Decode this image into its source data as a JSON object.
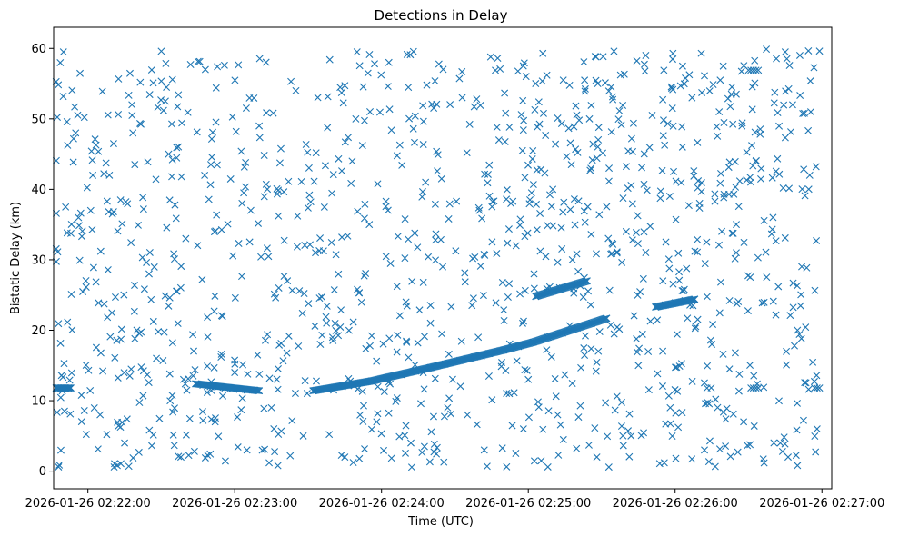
{
  "chart_data": {
    "type": "scatter",
    "title": "Detections in Delay",
    "xlabel": "Time (UTC)",
    "ylabel": "Bistatic Delay (km)",
    "marker": "x",
    "color": "#1f77b4",
    "grid": false,
    "x_tick_labels": [
      "2026-01-26 02:22:00",
      "2026-01-26 02:23:00",
      "2026-01-26 02:24:00",
      "2026-01-26 02:25:00",
      "2026-01-26 02:26:00",
      "2026-01-26 02:27:00"
    ],
    "y_ticks": [
      0,
      10,
      20,
      30,
      40,
      50,
      60
    ],
    "xlim": [
      "2026-01-26 02:21:46",
      "2026-01-26 02:27:04"
    ],
    "ylim": [
      -2.5,
      63
    ],
    "series": [
      {
        "points": [
          [
            "2026-01-26 02:21:47",
            11.8
          ],
          [
            "2026-01-26 02:21:48",
            11.8
          ],
          [
            "2026-01-26 02:21:49",
            11.8
          ],
          [
            "2026-01-26 02:21:50",
            11.8
          ],
          [
            "2026-01-26 02:21:51",
            11.8
          ],
          [
            "2026-01-26 02:21:52",
            11.8
          ],
          [
            "2026-01-26 02:21:53",
            11.8
          ],
          [
            "2026-01-26 02:22:44",
            12.4
          ],
          [
            "2026-01-26 02:22:47",
            12.2
          ],
          [
            "2026-01-26 02:22:50",
            12.0
          ],
          [
            "2026-01-26 02:22:53",
            11.9
          ],
          [
            "2026-01-26 02:22:56",
            11.8
          ],
          [
            "2026-01-26 02:22:59",
            11.7
          ],
          [
            "2026-01-26 02:23:02",
            11.6
          ],
          [
            "2026-01-26 02:23:05",
            11.5
          ],
          [
            "2026-01-26 02:23:08",
            11.5
          ],
          [
            "2026-01-26 02:23:10",
            11.4
          ],
          [
            "2026-01-26 02:23:32",
            11.4
          ],
          [
            "2026-01-26 02:23:38",
            11.7
          ],
          [
            "2026-01-26 02:23:44",
            12.0
          ],
          [
            "2026-01-26 02:23:50",
            12.4
          ],
          [
            "2026-01-26 02:23:56",
            12.8
          ],
          [
            "2026-01-26 02:24:02",
            13.2
          ],
          [
            "2026-01-26 02:24:08",
            13.7
          ],
          [
            "2026-01-26 02:24:14",
            14.2
          ],
          [
            "2026-01-26 02:24:20",
            14.7
          ],
          [
            "2026-01-26 02:24:26",
            15.2
          ],
          [
            "2026-01-26 02:24:32",
            15.7
          ],
          [
            "2026-01-26 02:24:38",
            16.2
          ],
          [
            "2026-01-26 02:24:44",
            16.7
          ],
          [
            "2026-01-26 02:24:50",
            17.2
          ],
          [
            "2026-01-26 02:24:56",
            17.7
          ],
          [
            "2026-01-26 02:25:02",
            18.3
          ],
          [
            "2026-01-26 02:25:08",
            19.0
          ],
          [
            "2026-01-26 02:25:14",
            19.6
          ],
          [
            "2026-01-26 02:25:20",
            20.3
          ],
          [
            "2026-01-26 02:25:26",
            21.0
          ],
          [
            "2026-01-26 02:25:32",
            21.7
          ],
          [
            "2026-01-26 02:25:52",
            23.3
          ],
          [
            "2026-01-26 02:25:56",
            23.6
          ],
          [
            "2026-01-26 02:26:00",
            23.9
          ],
          [
            "2026-01-26 02:26:04",
            24.2
          ],
          [
            "2026-01-26 02:26:08",
            24.4
          ],
          [
            "2026-01-26 02:25:03",
            24.8
          ],
          [
            "2026-01-26 02:25:08",
            25.4
          ],
          [
            "2026-01-26 02:25:14",
            26.0
          ],
          [
            "2026-01-26 02:25:20",
            26.6
          ],
          [
            "2026-01-26 02:25:24",
            27.0
          ],
          [
            "2026-01-26 02:26:30",
            56.9
          ],
          [
            "2026-01-26 02:26:31",
            56.9
          ],
          [
            "2026-01-26 02:26:32",
            56.9
          ],
          [
            "2026-01-26 02:26:33",
            56.9
          ],
          [
            "2026-01-26 02:26:34",
            56.9
          ],
          [
            "2026-01-26 02:26:31",
            11.8
          ],
          [
            "2026-01-26 02:26:32",
            11.8
          ],
          [
            "2026-01-26 02:26:33",
            11.8
          ],
          [
            "2026-01-26 02:26:34",
            11.8
          ],
          [
            "2026-01-26 02:26:57",
            11.8
          ],
          [
            "2026-01-26 02:26:58",
            11.8
          ],
          [
            "2026-01-26 02:26:59",
            11.8
          ],
          [
            "2026-01-26 02:26:20",
            39.3
          ],
          [
            "2026-01-26 02:26:22",
            39.3
          ],
          [
            "2026-01-26 02:26:24",
            39.3
          ],
          [
            "2026-01-26 02:21:55",
            48.0
          ],
          [
            "2026-01-26 02:22:02",
            42.0
          ],
          [
            "2026-01-26 02:22:10",
            36.5
          ],
          [
            "2026-01-26 02:22:18",
            52.0
          ],
          [
            "2026-01-26 02:22:25",
            28.0
          ],
          [
            "2026-01-26 02:22:33",
            45.0
          ],
          [
            "2026-01-26 02:22:40",
            33.0
          ],
          [
            "2026-01-26 02:22:48",
            57.0
          ],
          [
            "2026-01-26 02:22:55",
            22.0
          ],
          [
            "2026-01-26 02:23:03",
            38.0
          ],
          [
            "2026-01-26 02:23:10",
            49.0
          ],
          [
            "2026-01-26 02:23:18",
            26.0
          ],
          [
            "2026-01-26 02:23:25",
            54.0
          ],
          [
            "2026-01-26 02:23:33",
            31.0
          ],
          [
            "2026-01-26 02:23:40",
            19.0
          ],
          [
            "2026-01-26 02:23:48",
            44.0
          ],
          [
            "2026-01-26 02:23:55",
            35.0
          ],
          [
            "2026-01-26 02:24:03",
            58.0
          ],
          [
            "2026-01-26 02:24:10",
            24.0
          ],
          [
            "2026-01-26 02:24:18",
            41.0
          ],
          [
            "2026-01-26 02:24:25",
            29.0
          ],
          [
            "2026-01-26 02:24:33",
            53.0
          ],
          [
            "2026-01-26 02:24:40",
            37.0
          ],
          [
            "2026-01-26 02:24:48",
            47.0
          ],
          [
            "2026-01-26 02:24:55",
            32.0
          ],
          [
            "2026-01-26 02:25:03",
            55.0
          ],
          [
            "2026-01-26 02:25:10",
            40.0
          ],
          [
            "2026-01-26 02:25:18",
            30.0
          ],
          [
            "2026-01-26 02:25:25",
            50.0
          ],
          [
            "2026-01-26 02:25:33",
            43.0
          ],
          [
            "2026-01-26 02:25:40",
            34.0
          ],
          [
            "2026-01-26 02:25:48",
            59.0
          ],
          [
            "2026-01-26 02:25:55",
            27.0
          ],
          [
            "2026-01-26 02:26:03",
            46.0
          ],
          [
            "2026-01-26 02:26:10",
            38.0
          ],
          [
            "2026-01-26 02:26:18",
            51.0
          ],
          [
            "2026-01-26 02:26:25",
            31.0
          ],
          [
            "2026-01-26 02:26:33",
            44.0
          ],
          [
            "2026-01-26 02:26:40",
            36.0
          ],
          [
            "2026-01-26 02:26:48",
            52.0
          ],
          [
            "2026-01-26 02:26:55",
            42.0
          ],
          [
            "2026-01-26 02:22:05",
            8.0
          ],
          [
            "2026-01-26 02:22:15",
            4.0
          ],
          [
            "2026-01-26 02:22:28",
            16.0
          ],
          [
            "2026-01-26 02:22:38",
            2.0
          ],
          [
            "2026-01-26 02:22:52",
            7.0
          ],
          [
            "2026-01-26 02:23:05",
            3.0
          ],
          [
            "2026-01-26 02:23:15",
            9.0
          ],
          [
            "2026-01-26 02:23:28",
            5.0
          ],
          [
            "2026-01-26 02:23:45",
            2.0
          ],
          [
            "2026-01-26 02:23:58",
            7.0
          ],
          [
            "2026-01-26 02:24:12",
            4.0
          ],
          [
            "2026-01-26 02:24:27",
            9.0
          ],
          [
            "2026-01-26 02:24:42",
            3.0
          ],
          [
            "2026-01-26 02:24:58",
            6.0
          ],
          [
            "2026-01-26 02:25:12",
            8.0
          ],
          [
            "2026-01-26 02:25:28",
            2.0
          ],
          [
            "2026-01-26 02:25:42",
            5.0
          ],
          [
            "2026-01-26 02:25:58",
            9.0
          ],
          [
            "2026-01-26 02:26:12",
            3.0
          ],
          [
            "2026-01-26 02:26:28",
            7.0
          ],
          [
            "2026-01-26 02:26:43",
            4.0
          ],
          [
            "2026-01-26 02:26:58",
            6.0
          ],
          [
            "2026-01-26 02:21:48",
            0.6
          ],
          [
            "2026-01-26 02:22:12",
            0.8
          ],
          [
            "2026-01-26 02:25:08",
            0.6
          ],
          [
            "2026-01-26 02:26:50",
            0.8
          ],
          [
            "2026-01-26 02:21:50",
            59.5
          ],
          [
            "2026-01-26 02:22:30",
            59.6
          ],
          [
            "2026-01-26 02:23:50",
            59.5
          ],
          [
            "2026-01-26 02:25:35",
            59.6
          ],
          [
            "2026-01-26 02:26:45",
            59.5
          ],
          [
            "2026-01-26 02:22:20",
            20.0
          ],
          [
            "2026-01-26 02:23:00",
            14.0
          ],
          [
            "2026-01-26 02:23:35",
            18.0
          ],
          [
            "2026-01-26 02:24:20",
            21.0
          ],
          [
            "2026-01-26 02:25:00",
            13.0
          ],
          [
            "2026-01-26 02:25:45",
            15.0
          ],
          [
            "2026-01-26 02:26:15",
            18.0
          ],
          [
            "2026-01-26 02:26:50",
            20.0
          ]
        ]
      }
    ],
    "scatter_density": {
      "description": "random clutter count",
      "count": 1100,
      "seed": 7
    }
  }
}
